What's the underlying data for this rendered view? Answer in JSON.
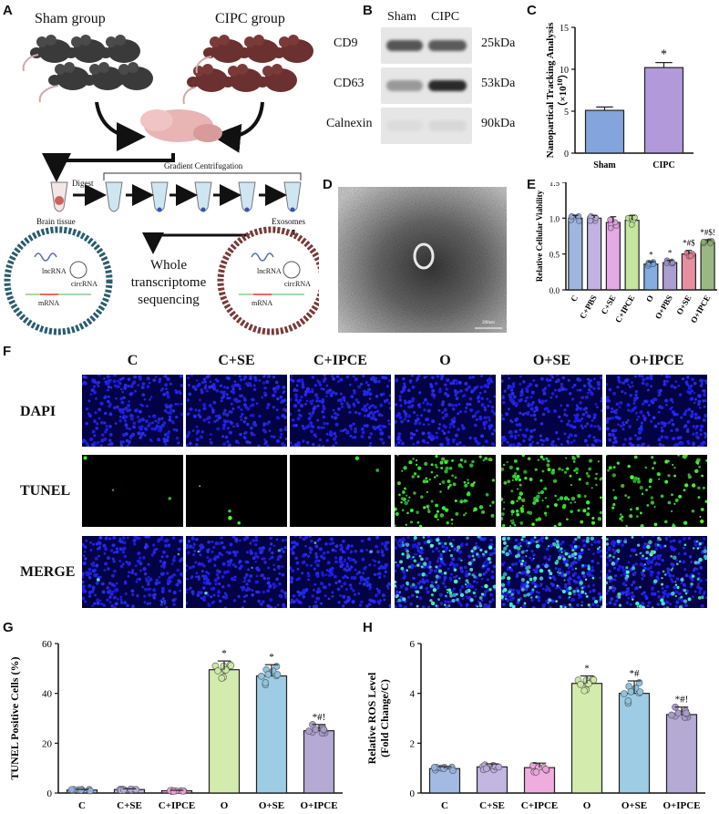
{
  "panels": {
    "A": "A",
    "B": "B",
    "C": "C",
    "D": "D",
    "E": "E",
    "F": "F",
    "G": "G",
    "H": "H"
  },
  "panelA": {
    "sham_label": "Sham group",
    "cipc_label": "CIPC group",
    "digest": "Digest",
    "gradient": "Gradient Centrifugation",
    "brain_tissue": "Brain tissue",
    "exosomes": "Exosomes",
    "wts": "Whole transcriptome sequencing",
    "lncrna": "lncRNA",
    "circrna": "circRNA",
    "mrna": "mRNA"
  },
  "panelB": {
    "col_sham": "Sham",
    "col_cipc": "CIPC",
    "rows": [
      {
        "protein": "CD9",
        "kda": "25kDa",
        "colors": [
          "#555",
          "#5a5a5a"
        ]
      },
      {
        "protein": "CD63",
        "kda": "53kDa",
        "colors": [
          "#999",
          "#2a2a2a"
        ]
      },
      {
        "protein": "Calnexin",
        "kda": "90kDa",
        "colors": [
          "#dcdcdc",
          "#d8d8d8"
        ]
      }
    ]
  },
  "panelD": {
    "scale_text": "200nm"
  },
  "panelF": {
    "columns": [
      "C",
      "C+SE",
      "C+IPCE",
      "O",
      "O+SE",
      "O+IPCE"
    ],
    "rows": [
      "DAPI",
      "TUNEL",
      "MERGE"
    ],
    "tunel_density": [
      3,
      4,
      2,
      120,
      140,
      90
    ]
  },
  "colors": {
    "C": "#8fa6d8",
    "C+PBS": "#b7a7d8",
    "C+SE": "#d79ad6",
    "C+IPCE": "#b4e08a",
    "O": "#6ea0d8",
    "O+PBS": "#9c8cc6",
    "O+SE": "#e07a8a",
    "O+IPCE": "#8aab6e",
    "G1": "#93aede",
    "G2": "#b9a9dc",
    "G3": "#ec9fd9",
    "G4": "#cbe9a0",
    "G5": "#8dc3df",
    "G6": "#a79bcc"
  },
  "chart_data": [
    {
      "id": "C",
      "type": "bar",
      "categories": [
        "Sham",
        "CIPC"
      ],
      "values": [
        5.1,
        10.2
      ],
      "errors": [
        0.4,
        0.6
      ],
      "colors": [
        "#6d94d6",
        "#a487d4"
      ],
      "annotations": [
        "",
        "*"
      ],
      "ylabel": "Nanopartical Tracking Analysis",
      "ylabel2": "（×10",
      "ylabel2_sup": "10",
      "ylabel2_end": "）",
      "ylim": [
        0,
        15
      ],
      "yticks": [
        0,
        5,
        10,
        15
      ]
    },
    {
      "id": "E",
      "type": "bar",
      "categories": [
        "C",
        "C+PBS",
        "C+SE",
        "C+IPCE",
        "O",
        "O+PBS",
        "O+SE",
        "O+IPCE"
      ],
      "values": [
        1.0,
        1.0,
        0.94,
        0.97,
        0.36,
        0.38,
        0.5,
        0.66
      ],
      "errors": [
        0.04,
        0.04,
        0.08,
        0.07,
        0.03,
        0.03,
        0.05,
        0.04
      ],
      "colors": [
        "#8fa9dc",
        "#b5a5dc",
        "#e09ae0",
        "#b8e290",
        "#6f9fdc",
        "#9c8dca",
        "#e07b90",
        "#8aab6e"
      ],
      "annotations": [
        "",
        "",
        "",
        "",
        "*",
        "*",
        "*#$",
        "*#$!"
      ],
      "ylabel": "Relative Cellular Viability",
      "ylim": [
        0,
        1.5
      ],
      "yticks": [
        0.0,
        0.5,
        1.0,
        1.5
      ]
    },
    {
      "id": "G",
      "type": "bar",
      "categories": [
        "C",
        "C+SE",
        "C+IPCE",
        "O",
        "O+SE",
        "O+IPCE"
      ],
      "values": [
        1.2,
        1.4,
        0.9,
        49.5,
        47.0,
        25.0
      ],
      "errors": [
        0.3,
        0.3,
        0.2,
        3.5,
        4.5,
        2.5
      ],
      "colors": [
        "#93aede",
        "#b9a9dc",
        "#ec9fd9",
        "#cbe9a0",
        "#8dc3df",
        "#a79bcc"
      ],
      "annotations": [
        "",
        "",
        "",
        "*",
        "*",
        "*#!"
      ],
      "ylabel": "TUNEL Positive Cells (%)",
      "ylim": [
        0,
        60
      ],
      "yticks": [
        0,
        20,
        40,
        60
      ]
    },
    {
      "id": "H",
      "type": "bar",
      "categories": [
        "C",
        "C+SE",
        "C+IPCE",
        "O",
        "O+SE",
        "O+IPCE"
      ],
      "values": [
        0.98,
        1.05,
        1.02,
        4.4,
        4.0,
        3.15
      ],
      "errors": [
        0.08,
        0.12,
        0.18,
        0.3,
        0.5,
        0.3
      ],
      "colors": [
        "#93aede",
        "#b9a9dc",
        "#ec9fd9",
        "#cbe9a0",
        "#8dc3df",
        "#a79bcc"
      ],
      "annotations": [
        "",
        "",
        "",
        "*",
        "*#",
        "*#!"
      ],
      "ylabel": "Relative ROS Level",
      "ylabel2": "(Fold Change/C)",
      "ylim": [
        0,
        6
      ],
      "yticks": [
        0,
        2,
        4,
        6
      ]
    }
  ]
}
